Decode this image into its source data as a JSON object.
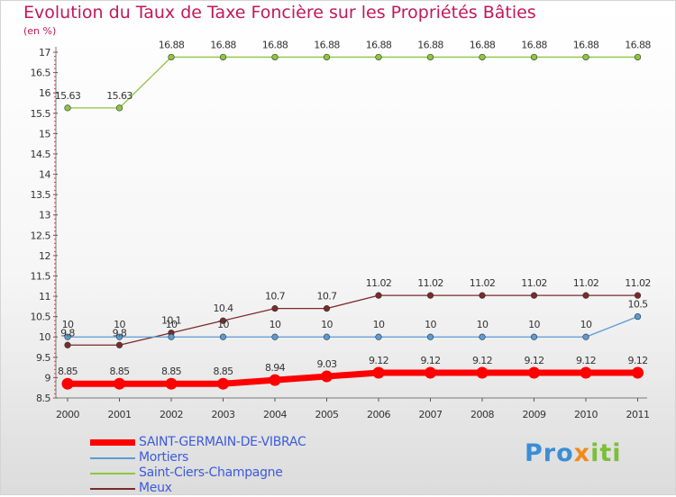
{
  "title": "Evolution du Taux de Taxe Foncière sur les Propriétés Bâties",
  "unit_label": "(en %)",
  "logo": {
    "text": "Proxiti"
  },
  "chart_data": {
    "type": "line",
    "x": [
      2000,
      2001,
      2002,
      2003,
      2004,
      2005,
      2006,
      2007,
      2008,
      2009,
      2010,
      2011
    ],
    "ylim": [
      8.5,
      17
    ],
    "yticks": [
      "8.5",
      "9",
      "9.5",
      "10",
      "10.5",
      "11",
      "11.5",
      "12",
      "12.5",
      "13",
      "13.5",
      "14",
      "14.5",
      "15",
      "15.5",
      "16",
      "16.5",
      "17"
    ],
    "grid": false,
    "legend_position": "bottom-left",
    "series": [
      {
        "name": "SAINT-GERMAIN-DE-VIBRAC",
        "color": "#ff0000",
        "values": [
          8.85,
          8.85,
          8.85,
          8.85,
          8.94,
          9.03,
          9.12,
          9.12,
          9.12,
          9.12,
          9.12,
          9.12
        ],
        "labels": [
          "8.85",
          "8.85",
          "8.85",
          "8.85",
          "8.94",
          "9.03",
          "9.12",
          "9.12",
          "9.12",
          "9.12",
          "9.12",
          "9.12"
        ]
      },
      {
        "name": "Mortiers",
        "color": "#5a9bd5",
        "values": [
          10,
          10,
          10,
          10,
          10,
          10,
          10,
          10,
          10,
          10,
          10,
          10.5
        ],
        "labels": [
          "10",
          "10",
          "10",
          "10",
          "10",
          "10",
          "10",
          "10",
          "10",
          "10",
          "10",
          "10.5"
        ]
      },
      {
        "name": "Saint-Ciers-Champagne",
        "color": "#8dc63f",
        "values": [
          15.63,
          15.63,
          16.88,
          16.88,
          16.88,
          16.88,
          16.88,
          16.88,
          16.88,
          16.88,
          16.88,
          16.88
        ],
        "labels": [
          "15.63",
          "15.63",
          "16.88",
          "16.88",
          "16.88",
          "16.88",
          "16.88",
          "16.88",
          "16.88",
          "16.88",
          "16.88",
          "16.88"
        ]
      },
      {
        "name": "Meux",
        "color": "#7b2a2a",
        "values": [
          9.8,
          9.8,
          10.1,
          10.4,
          10.7,
          10.7,
          11.02,
          11.02,
          11.02,
          11.02,
          11.02,
          11.02
        ],
        "labels": [
          "9.8",
          "9.8",
          "10.1",
          "10.4",
          "10.7",
          "10.7",
          "11.02",
          "11.02",
          "11.02",
          "11.02",
          "11.02",
          "11.02"
        ]
      }
    ]
  }
}
